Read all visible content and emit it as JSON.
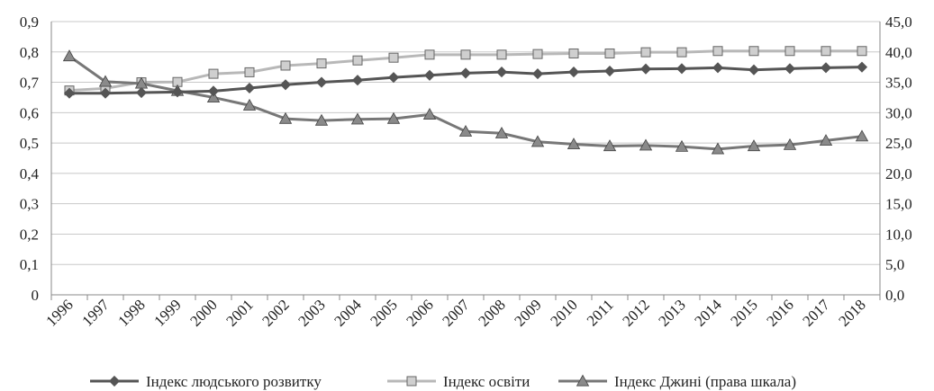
{
  "chart_data": {
    "type": "line",
    "title": "",
    "xlabel": "",
    "ylabel": "",
    "categories": [
      "1996",
      "1997",
      "1998",
      "1999",
      "2000",
      "2001",
      "2002",
      "2003",
      "2004",
      "2005",
      "2006",
      "2007",
      "2008",
      "2009",
      "2010",
      "2011",
      "2012",
      "2013",
      "2014",
      "2015",
      "2016",
      "2017",
      "2018"
    ],
    "y_left": {
      "min": 0,
      "max": 0.9,
      "step": 0.1,
      "tick_labels": [
        "0",
        "0,1",
        "0,2",
        "0,3",
        "0,4",
        "0,5",
        "0,6",
        "0,7",
        "0,8",
        "0,9"
      ]
    },
    "y_right": {
      "min": 0,
      "max": 45,
      "step": 5,
      "tick_labels": [
        "0,0",
        "5,0",
        "10,0",
        "15,0",
        "20,0",
        "25,0",
        "30,0",
        "35,0",
        "40,0",
        "45,0"
      ]
    },
    "grid": true,
    "legend_position": "bottom",
    "series": [
      {
        "name": "Індекс людського розвитку",
        "axis": "left",
        "marker": "diamond",
        "color": "#555555",
        "values": [
          0.664,
          0.664,
          0.666,
          0.668,
          0.671,
          0.681,
          0.692,
          0.7,
          0.707,
          0.716,
          0.723,
          0.73,
          0.734,
          0.728,
          0.734,
          0.737,
          0.744,
          0.745,
          0.748,
          0.741,
          0.745,
          0.748,
          0.75
        ]
      },
      {
        "name": "Індекс освіти",
        "axis": "left",
        "marker": "square",
        "color": "#b8b8b8",
        "values": [
          0.673,
          0.68,
          0.7,
          0.701,
          0.728,
          0.733,
          0.755,
          0.762,
          0.772,
          0.781,
          0.791,
          0.791,
          0.791,
          0.793,
          0.795,
          0.795,
          0.799,
          0.799,
          0.803,
          0.803,
          0.803,
          0.803,
          0.803
        ]
      },
      {
        "name": "Індекс Джині (права шкала)",
        "axis": "right",
        "marker": "triangle",
        "color": "#777777",
        "values": [
          39.3,
          35.1,
          34.8,
          33.6,
          32.5,
          31.2,
          29.0,
          28.7,
          28.9,
          29.0,
          29.7,
          26.9,
          26.6,
          25.2,
          24.8,
          24.5,
          24.6,
          24.4,
          24.0,
          24.5,
          24.7,
          25.4,
          26.1
        ]
      }
    ]
  }
}
